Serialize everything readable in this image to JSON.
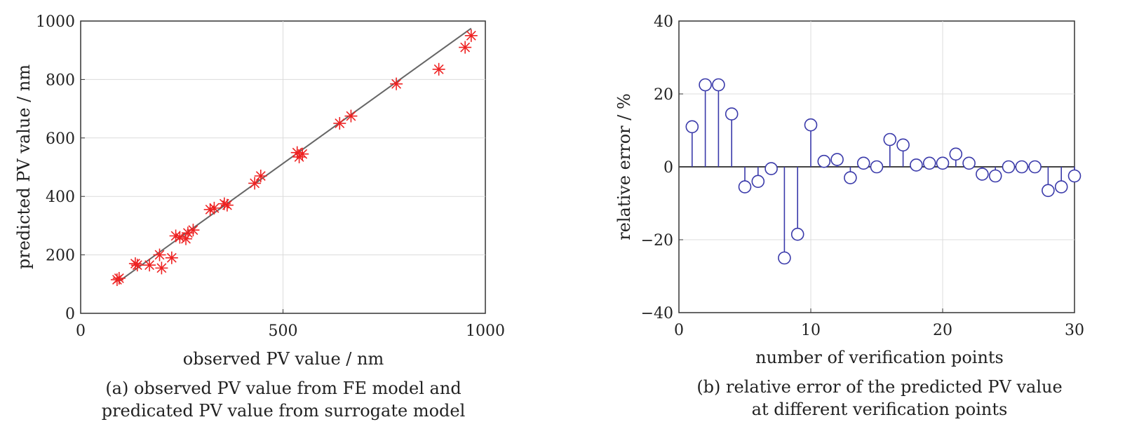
{
  "chart_data": [
    {
      "type": "scatter",
      "xlabel": "observed PV value / nm",
      "ylabel": "predicted PV value / nm",
      "caption_line1": "(a) observed PV value from FE model and",
      "caption_line2": "predicated PV value from surrogate model",
      "xlim": [
        0,
        1000
      ],
      "ylim": [
        0,
        1000
      ],
      "xticks": [
        0,
        500,
        1000
      ],
      "yticks": [
        0,
        200,
        400,
        600,
        800,
        1000
      ],
      "grid": true,
      "marker_color": "#ee2222",
      "line_color": "#666666",
      "reference_line": {
        "x": [
          95,
          965
        ],
        "y": [
          110,
          975
        ]
      },
      "series": [
        {
          "points": [
            {
              "x": 90,
              "y": 115
            },
            {
              "x": 95,
              "y": 120
            },
            {
              "x": 135,
              "y": 170
            },
            {
              "x": 140,
              "y": 165
            },
            {
              "x": 170,
              "y": 165
            },
            {
              "x": 195,
              "y": 200
            },
            {
              "x": 200,
              "y": 155
            },
            {
              "x": 225,
              "y": 190
            },
            {
              "x": 235,
              "y": 265
            },
            {
              "x": 245,
              "y": 260
            },
            {
              "x": 260,
              "y": 255
            },
            {
              "x": 265,
              "y": 275
            },
            {
              "x": 278,
              "y": 285
            },
            {
              "x": 320,
              "y": 355
            },
            {
              "x": 330,
              "y": 360
            },
            {
              "x": 355,
              "y": 375
            },
            {
              "x": 362,
              "y": 370
            },
            {
              "x": 430,
              "y": 445
            },
            {
              "x": 445,
              "y": 470
            },
            {
              "x": 535,
              "y": 550
            },
            {
              "x": 540,
              "y": 535
            },
            {
              "x": 548,
              "y": 545
            },
            {
              "x": 640,
              "y": 650
            },
            {
              "x": 668,
              "y": 675
            },
            {
              "x": 780,
              "y": 785
            },
            {
              "x": 885,
              "y": 835
            },
            {
              "x": 950,
              "y": 910
            },
            {
              "x": 965,
              "y": 950
            }
          ]
        }
      ]
    },
    {
      "type": "stem",
      "xlabel": "number of verification points",
      "ylabel": "relative error / %",
      "caption_line1": "(b) relative error of the predicted PV value",
      "caption_line2": "at different verification points",
      "xlim": [
        0,
        30
      ],
      "ylim": [
        -40,
        40
      ],
      "xticks": [
        0,
        10,
        20,
        30
      ],
      "yticks": [
        -40,
        -20,
        0,
        20,
        40
      ],
      "ytick_labels": [
        "−40",
        "−20",
        "0",
        "20",
        "40"
      ],
      "grid": true,
      "marker_color": "#3a3aaa",
      "series": [
        {
          "x": [
            1,
            2,
            3,
            4,
            5,
            6,
            7,
            8,
            9,
            10,
            11,
            12,
            13,
            14,
            15,
            16,
            17,
            18,
            19,
            20,
            21,
            22,
            23,
            24,
            25,
            26,
            27,
            28,
            29,
            30
          ],
          "values": [
            11,
            22.5,
            22.5,
            14.5,
            -5.5,
            -4,
            -0.5,
            -25,
            -18.5,
            11.5,
            1.5,
            2,
            -3,
            1,
            0,
            7.5,
            6,
            0.5,
            1,
            1,
            3.5,
            1,
            -2,
            -2.5,
            0,
            0,
            0,
            -6.5,
            -5.5,
            -2.5
          ]
        }
      ]
    }
  ]
}
